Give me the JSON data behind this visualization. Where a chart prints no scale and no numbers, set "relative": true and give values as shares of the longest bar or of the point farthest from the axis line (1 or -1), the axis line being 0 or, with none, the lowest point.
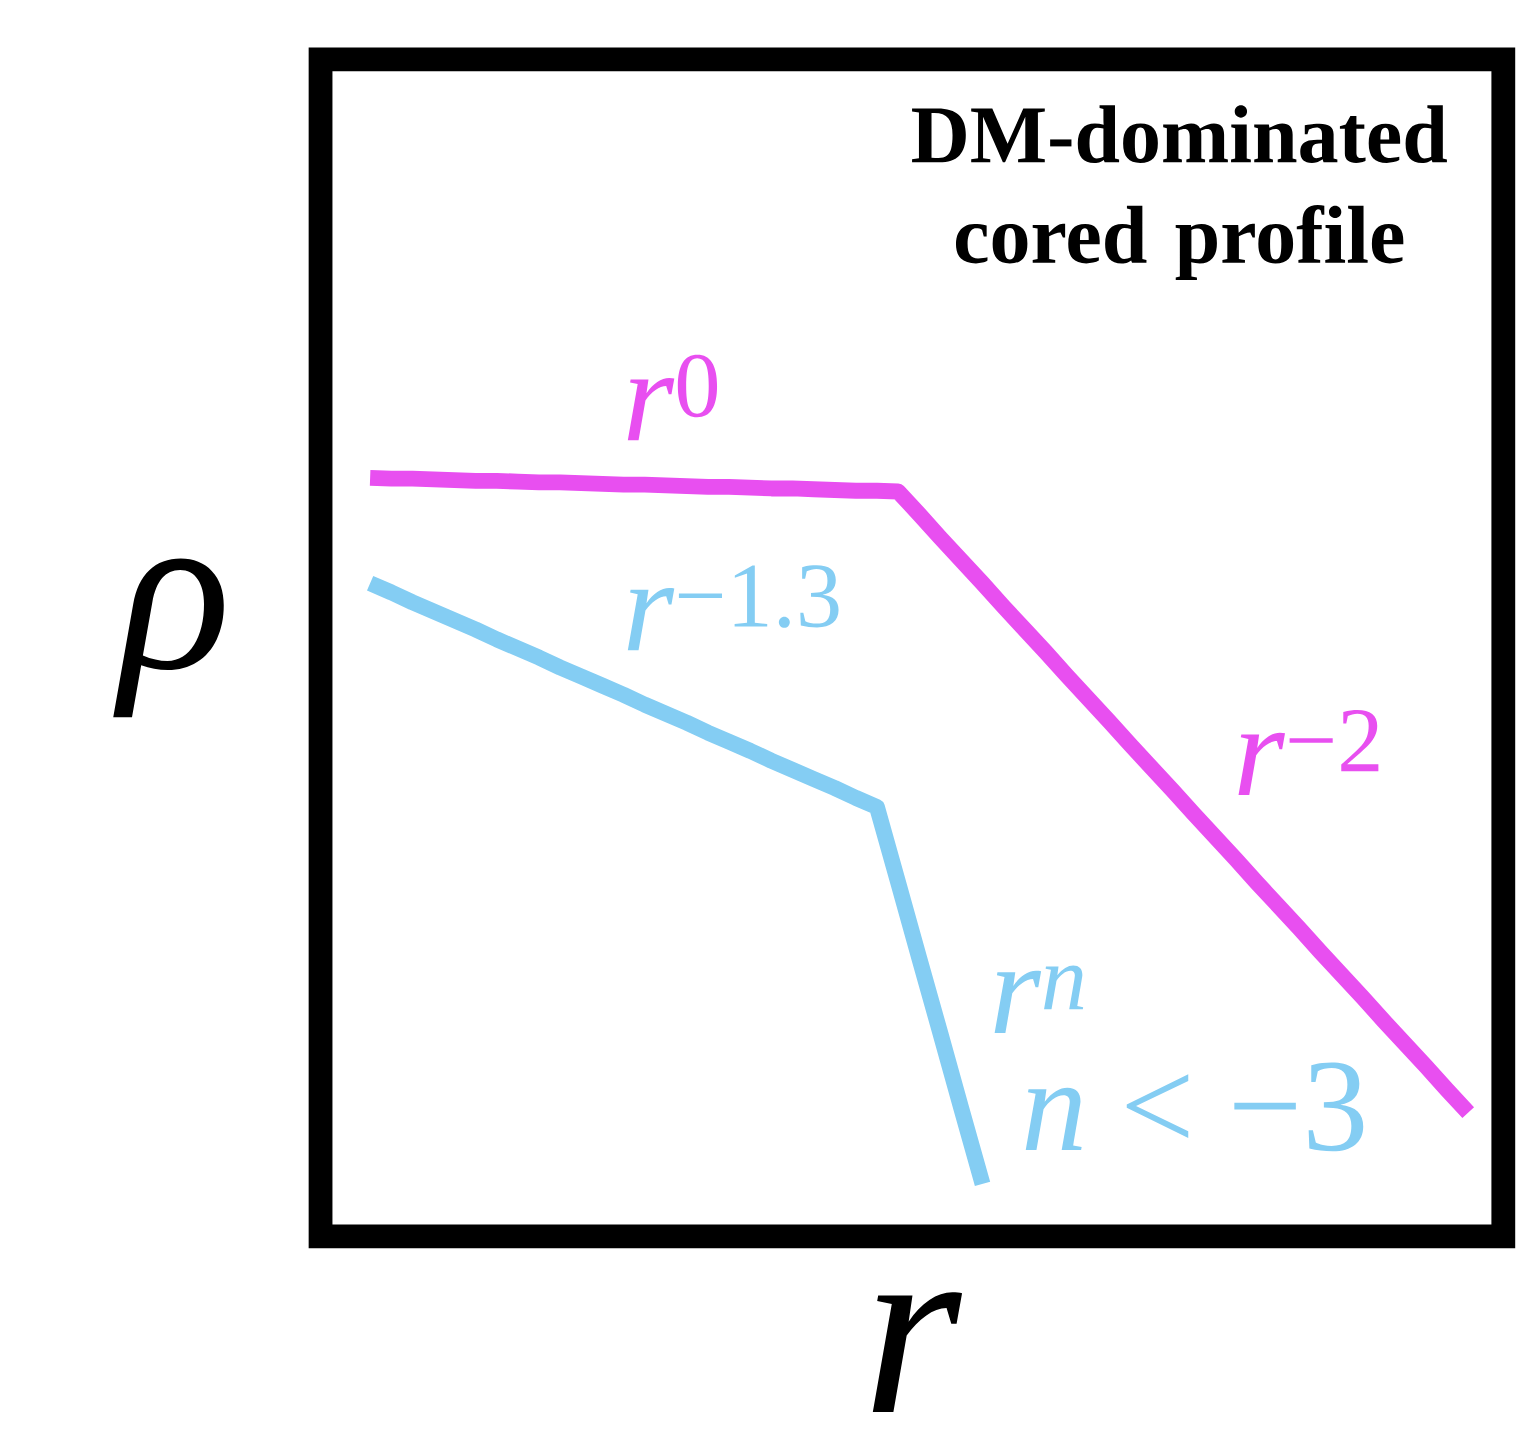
{
  "chart_data": {
    "type": "line",
    "relative": true,
    "title": "DM-dominated cored profile",
    "xlabel": "r",
    "ylabel": "ρ",
    "marker": "none",
    "line_style": "solid",
    "categories": [
      null,
      null,
      null,
      null,
      null,
      null,
      null,
      null,
      null,
      null,
      null,
      null,
      null,
      null,
      null,
      null,
      null,
      null,
      null,
      null,
      null,
      null,
      null,
      null,
      null,
      null,
      null,
      null,
      null,
      null,
      null,
      null,
      null,
      null,
      null,
      null,
      null,
      null,
      null,
      null,
      null,
      null,
      null,
      null,
      null,
      null,
      null,
      null,
      null,
      null,
      null,
      null,
      null
    ],
    "series": [
      {
        "color": "#e84ff0",
        "values": [
          1.0,
          0.999,
          0.999,
          0.998,
          0.997,
          0.996,
          0.996,
          0.995,
          0.994,
          0.994,
          0.993,
          0.992,
          0.991,
          0.991,
          0.99,
          0.989,
          0.988,
          0.988,
          0.987,
          0.986,
          0.986,
          0.985,
          0.984,
          0.983,
          0.983,
          0.982,
          0.952,
          0.921,
          0.891,
          0.861,
          0.83,
          0.8,
          0.77,
          0.739,
          0.709,
          0.679,
          0.648,
          0.618,
          0.588,
          0.557,
          0.527,
          0.497,
          0.466,
          0.436,
          0.406,
          0.375,
          0.345,
          0.315,
          0.284,
          0.254,
          0.224,
          0.193,
          0.163
        ]
      },
      {
        "color": "#84cdf3",
        "values": [
          0.861,
          0.849,
          0.836,
          0.824,
          0.812,
          0.8,
          0.787,
          0.775,
          0.763,
          0.75,
          0.738,
          0.726,
          0.714,
          0.701,
          0.689,
          0.677,
          0.664,
          0.652,
          0.64,
          0.627,
          0.615,
          0.603,
          0.591,
          0.578,
          0.566,
          0.467,
          0.367,
          0.268,
          0.168,
          0.069,
          null,
          null,
          null,
          null,
          null,
          null,
          null,
          null,
          null,
          null,
          null,
          null,
          null,
          null,
          null,
          null,
          null,
          null,
          null,
          null,
          null,
          null,
          null
        ]
      }
    ],
    "annotations": [
      "*r*$^{0}$",
      "*r*$^{−1.3}$",
      "*r*$^{−2}$",
      "*r$^{n}$*",
      "*n* < −3"
    ]
  }
}
